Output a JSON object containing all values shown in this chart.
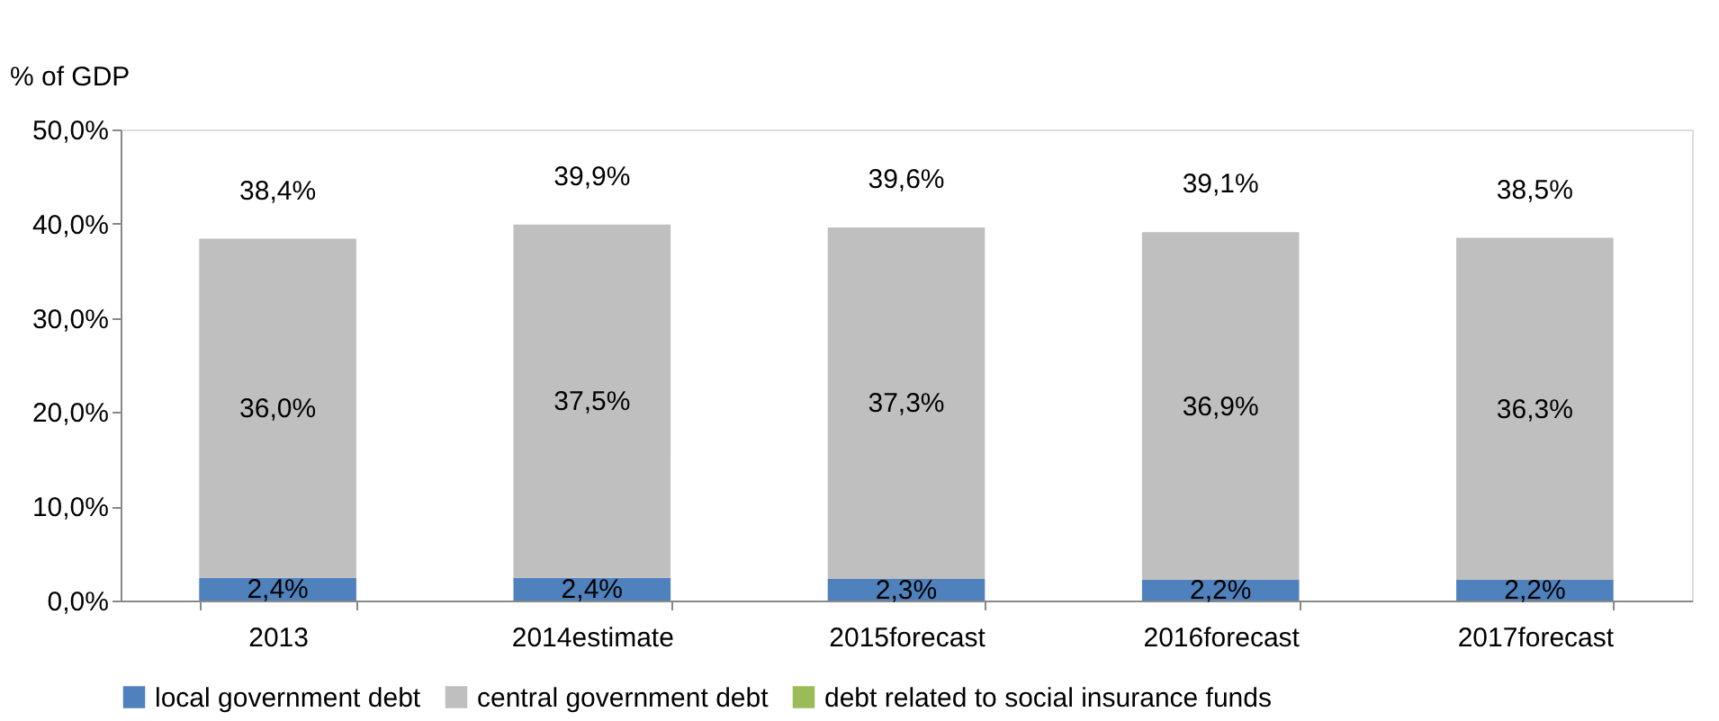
{
  "chart_data": {
    "type": "bar",
    "stacked": true,
    "ylabel": "% of GDP",
    "categories": [
      "2013",
      "2014estimate",
      "2015forecast",
      "2016forecast",
      "2017forecast"
    ],
    "series": [
      {
        "name": "local government debt",
        "color": "#4f81bd",
        "values": [
          2.4,
          2.4,
          2.3,
          2.2,
          2.2
        ],
        "value_labels": [
          "2,4%",
          "2,4%",
          "2,3%",
          "2,2%",
          "2,2%"
        ]
      },
      {
        "name": "central government debt",
        "color": "#bfbfbf",
        "values": [
          36.0,
          37.5,
          37.3,
          36.9,
          36.3
        ],
        "value_labels": [
          "36,0%",
          "37,5%",
          "37,3%",
          "36,9%",
          "36,3%"
        ]
      },
      {
        "name": "debt related to social insurance funds",
        "color": "#9bbb59",
        "values": [
          0,
          0,
          0,
          0,
          0
        ]
      }
    ],
    "totals": [
      "38,4%",
      "39,9%",
      "39,6%",
      "39,1%",
      "38,5%"
    ],
    "ylim": [
      0,
      50
    ],
    "yticks": [
      {
        "value": 0,
        "label": "0,0%"
      },
      {
        "value": 10,
        "label": "10,0%"
      },
      {
        "value": 20,
        "label": "20,0%"
      },
      {
        "value": 30,
        "label": "30,0%"
      },
      {
        "value": 40,
        "label": "40,0%"
      },
      {
        "value": 50,
        "label": "50,0%"
      }
    ],
    "grid": false,
    "legend": "bottom"
  }
}
